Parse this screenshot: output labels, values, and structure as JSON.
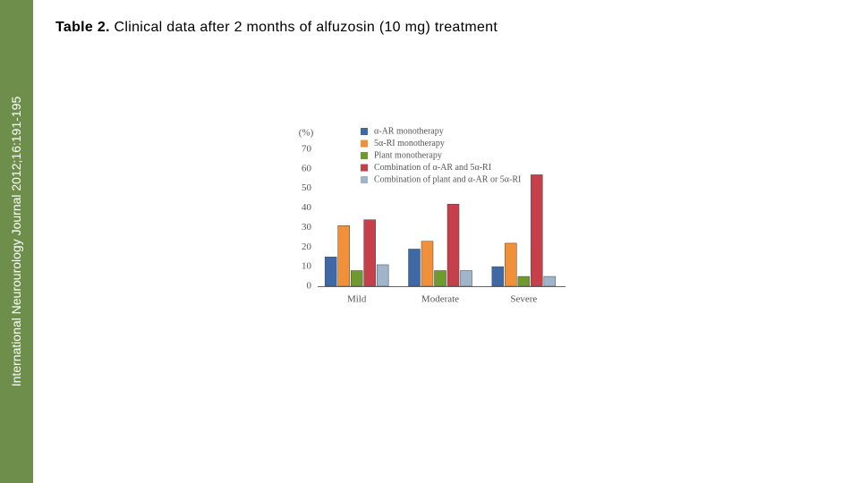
{
  "sidebar": {
    "text": "International Neurourology Journal 2012;16:191-195"
  },
  "heading": {
    "label": "Table 2.",
    "text": "Clinical data after 2 months of alfuzosin (10 mg) treatment"
  },
  "chart_data": {
    "type": "bar",
    "y_label": "(%)",
    "categories": [
      "Mild",
      "Moderate",
      "Severe"
    ],
    "series": [
      {
        "name": "α-AR monotherapy",
        "color": "#3f68a6",
        "values": [
          15,
          19,
          10
        ]
      },
      {
        "name": "5α-RI monotherapy",
        "color": "#f0913a",
        "values": [
          31,
          23,
          22
        ]
      },
      {
        "name": "Plant monotherapy",
        "color": "#6f9a2f",
        "values": [
          8,
          8,
          5
        ]
      },
      {
        "name": "Combination of α-AR and 5α-RI",
        "color": "#c6404b",
        "values": [
          34,
          42,
          57
        ]
      },
      {
        "name": "Combination of plant and α-AR or 5α-RI",
        "color": "#9fb5cc",
        "values": [
          11,
          8,
          5
        ]
      }
    ],
    "ylim": [
      0,
      70
    ],
    "yticks": [
      0,
      10,
      20,
      30,
      40,
      50,
      60,
      70
    ],
    "grid": false
  }
}
